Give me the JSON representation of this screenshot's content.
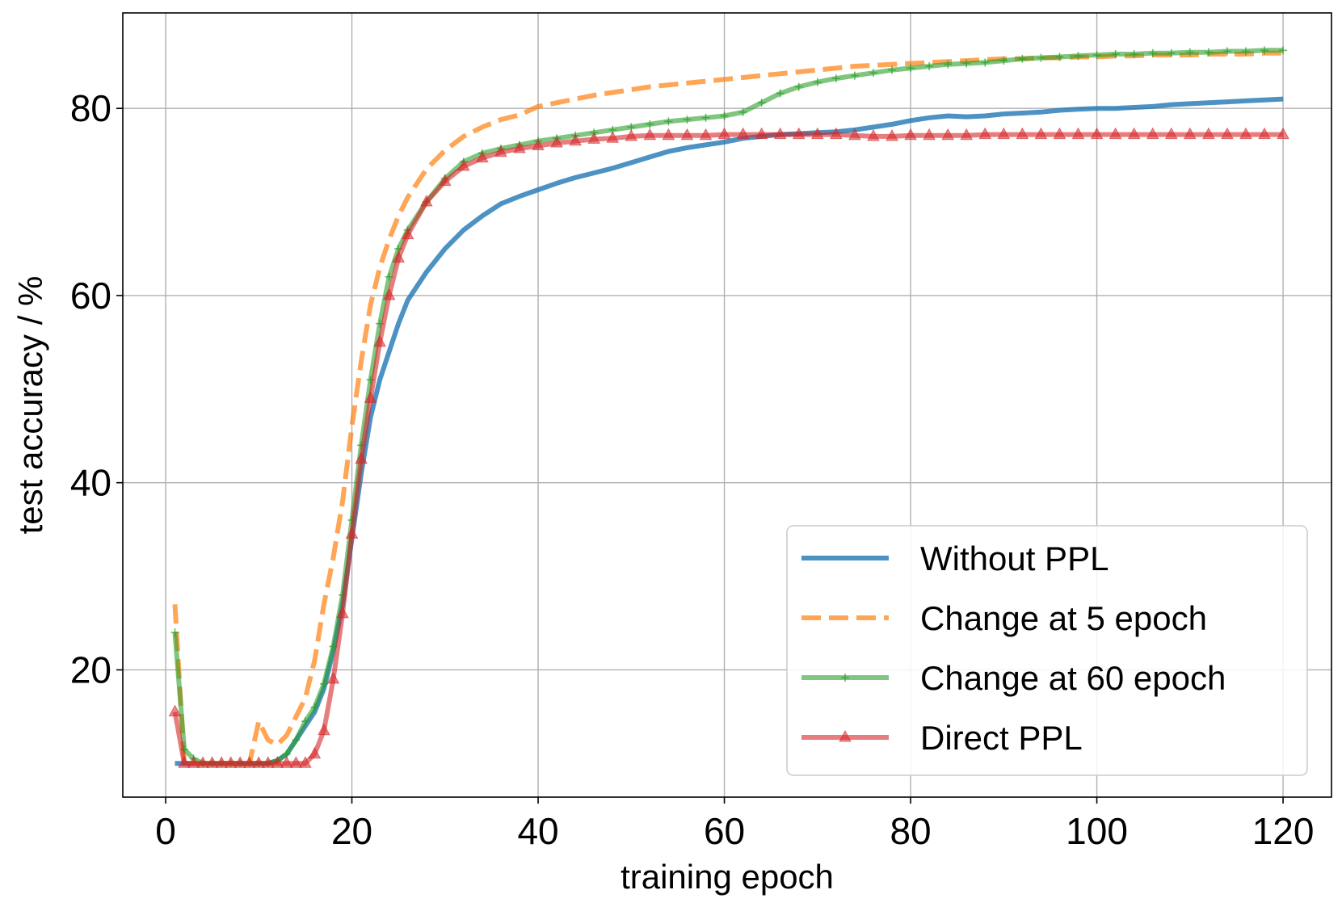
{
  "chart_data": {
    "type": "line",
    "title": "",
    "xlabel": "training epoch",
    "ylabel": "test accuracy / %",
    "xlim": [
      -4.6,
      125.2
    ],
    "ylim": [
      6.4,
      90.2
    ],
    "xticks": [
      0,
      20,
      40,
      60,
      80,
      100,
      120
    ],
    "yticks": [
      20,
      40,
      60,
      80
    ],
    "grid": true,
    "legend_position": "lower-right",
    "series": [
      {
        "name": "Without PPL",
        "color": "#1f77b4",
        "style": "solid",
        "marker": "none",
        "x": [
          1,
          2,
          3,
          4,
          5,
          6,
          7,
          8,
          9,
          10,
          11,
          12,
          13,
          14,
          15,
          16,
          17,
          18,
          19,
          20,
          21,
          22,
          23,
          24,
          25,
          26,
          28,
          30,
          32,
          34,
          36,
          38,
          40,
          42,
          44,
          46,
          48,
          50,
          52,
          54,
          56,
          58,
          60,
          62,
          64,
          66,
          68,
          70,
          72,
          74,
          76,
          78,
          80,
          82,
          84,
          86,
          88,
          90,
          92,
          94,
          96,
          98,
          100,
          102,
          104,
          106,
          108,
          110,
          112,
          114,
          116,
          118,
          120
        ],
        "y": [
          10,
          10,
          10,
          10,
          10,
          10,
          10,
          10,
          10,
          10,
          10,
          10.3,
          11,
          12.5,
          14,
          15.5,
          18,
          22,
          27,
          34,
          41,
          47,
          51,
          54,
          57,
          59.5,
          62.5,
          65,
          67,
          68.5,
          69.8,
          70.6,
          71.3,
          72,
          72.6,
          73.1,
          73.6,
          74.2,
          74.8,
          75.4,
          75.8,
          76.1,
          76.4,
          76.8,
          77,
          77.2,
          77.3,
          77.4,
          77.5,
          77.7,
          78,
          78.3,
          78.7,
          79,
          79.2,
          79.1,
          79.2,
          79.4,
          79.5,
          79.6,
          79.8,
          79.9,
          80,
          80,
          80.1,
          80.2,
          80.4,
          80.5,
          80.6,
          80.7,
          80.8,
          80.9,
          81
        ]
      },
      {
        "name": "Change at 5 epoch",
        "color": "#ff7f0e",
        "style": "dashed",
        "marker": "none",
        "x": [
          1,
          2,
          3,
          4,
          5,
          6,
          7,
          8,
          9,
          10,
          11,
          12,
          13,
          14,
          15,
          16,
          17,
          18,
          19,
          20,
          21,
          22,
          23,
          24,
          25,
          26,
          28,
          30,
          32,
          34,
          36,
          38,
          40,
          42,
          44,
          46,
          48,
          50,
          52,
          54,
          56,
          58,
          60,
          62,
          64,
          66,
          68,
          70,
          72,
          74,
          76,
          78,
          80,
          82,
          84,
          86,
          88,
          90,
          92,
          94,
          96,
          98,
          100,
          102,
          104,
          106,
          108,
          110,
          112,
          114,
          116,
          118,
          120
        ],
        "y": [
          27,
          10,
          10,
          10,
          10,
          10,
          10,
          10,
          10,
          14.5,
          12.5,
          12,
          13,
          15,
          17,
          21,
          27,
          32,
          38,
          46,
          53,
          59,
          63,
          66,
          68.5,
          70.5,
          73.5,
          75.5,
          77,
          78,
          78.8,
          79.3,
          80.2,
          80.6,
          81,
          81.4,
          81.7,
          82,
          82.3,
          82.5,
          82.7,
          82.9,
          83.1,
          83.3,
          83.5,
          83.7,
          83.9,
          84.1,
          84.3,
          84.5,
          84.6,
          84.7,
          84.8,
          84.9,
          85,
          85.1,
          85.2,
          85.3,
          85.3,
          85.4,
          85.4,
          85.5,
          85.5,
          85.6,
          85.6,
          85.7,
          85.7,
          85.7,
          85.8,
          85.8,
          85.8,
          85.9,
          85.9
        ]
      },
      {
        "name": "Change at 60 epoch",
        "color": "#2ca02c",
        "style": "solid",
        "marker": "plus",
        "x": [
          1,
          2,
          3,
          4,
          5,
          6,
          7,
          8,
          9,
          10,
          11,
          12,
          13,
          14,
          15,
          16,
          17,
          18,
          19,
          20,
          21,
          22,
          23,
          24,
          25,
          26,
          28,
          30,
          32,
          34,
          36,
          38,
          40,
          42,
          44,
          46,
          48,
          50,
          52,
          54,
          56,
          58,
          60,
          62,
          64,
          66,
          68,
          70,
          72,
          74,
          76,
          78,
          80,
          82,
          84,
          86,
          88,
          90,
          92,
          94,
          96,
          98,
          100,
          102,
          104,
          106,
          108,
          110,
          112,
          114,
          116,
          118,
          120
        ],
        "y": [
          24,
          11.5,
          10.5,
          10,
          10,
          10,
          10,
          10,
          10,
          10,
          10,
          10.3,
          11,
          12.5,
          14.5,
          16,
          18.5,
          22.5,
          28,
          36,
          44,
          51,
          57,
          62,
          65,
          67,
          70,
          72.5,
          74.3,
          75.2,
          75.7,
          76.1,
          76.5,
          76.8,
          77.1,
          77.4,
          77.7,
          78,
          78.3,
          78.6,
          78.8,
          79,
          79.2,
          79.6,
          80.6,
          81.6,
          82.3,
          82.8,
          83.2,
          83.5,
          83.8,
          84.1,
          84.3,
          84.5,
          84.7,
          84.8,
          84.9,
          85.1,
          85.3,
          85.4,
          85.5,
          85.6,
          85.7,
          85.8,
          85.8,
          85.9,
          85.9,
          86,
          86,
          86.1,
          86.1,
          86.2,
          86.2
        ]
      },
      {
        "name": "Direct PPL",
        "color": "#d62728",
        "style": "solid",
        "marker": "triangle",
        "x": [
          1,
          2,
          3,
          4,
          5,
          6,
          7,
          8,
          9,
          10,
          11,
          12,
          13,
          14,
          15,
          16,
          17,
          18,
          19,
          20,
          21,
          22,
          23,
          24,
          25,
          26,
          28,
          30,
          32,
          34,
          36,
          38,
          40,
          42,
          44,
          46,
          48,
          50,
          52,
          54,
          56,
          58,
          60,
          62,
          64,
          66,
          68,
          70,
          72,
          74,
          76,
          78,
          80,
          82,
          84,
          86,
          88,
          90,
          92,
          94,
          96,
          98,
          100,
          102,
          104,
          106,
          108,
          110,
          112,
          114,
          116,
          118,
          120
        ],
        "y": [
          15.5,
          10,
          10,
          10,
          10,
          10,
          10,
          10,
          10,
          10,
          10,
          10,
          10,
          10,
          10,
          11,
          13.5,
          19,
          26,
          34.5,
          42.5,
          49,
          55,
          60,
          64,
          66.5,
          70,
          72.2,
          73.8,
          74.7,
          75.3,
          75.7,
          76,
          76.3,
          76.5,
          76.7,
          76.8,
          77,
          77.1,
          77.1,
          77.1,
          77.1,
          77.2,
          77.2,
          77.2,
          77.2,
          77.2,
          77.2,
          77.2,
          77.1,
          77,
          77,
          77.1,
          77.1,
          77.1,
          77.1,
          77.2,
          77.2,
          77.2,
          77.2,
          77.2,
          77.2,
          77.2,
          77.2,
          77.2,
          77.2,
          77.2,
          77.2,
          77.2,
          77.2,
          77.2,
          77.2,
          77.2
        ]
      }
    ]
  }
}
